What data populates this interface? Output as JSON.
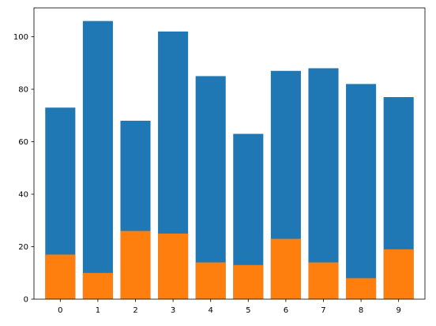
{
  "chart_data": {
    "type": "bar",
    "stacked": false,
    "categories": [
      "0",
      "1",
      "2",
      "3",
      "4",
      "5",
      "6",
      "7",
      "8",
      "9"
    ],
    "series": [
      {
        "values": [
          73,
          106,
          68,
          102,
          85,
          63,
          87,
          88,
          82,
          77
        ],
        "color": "#1f77b4"
      },
      {
        "values": [
          17,
          10,
          26,
          25,
          14,
          13,
          23,
          14,
          8,
          19
        ],
        "color": "#ff7f0e"
      }
    ],
    "ylim": [
      0,
      111
    ],
    "yticks": [
      "0",
      "20",
      "40",
      "60",
      "80",
      "100"
    ],
    "title": "",
    "xlabel": "",
    "ylabel": "",
    "grid": false,
    "legend": false
  }
}
